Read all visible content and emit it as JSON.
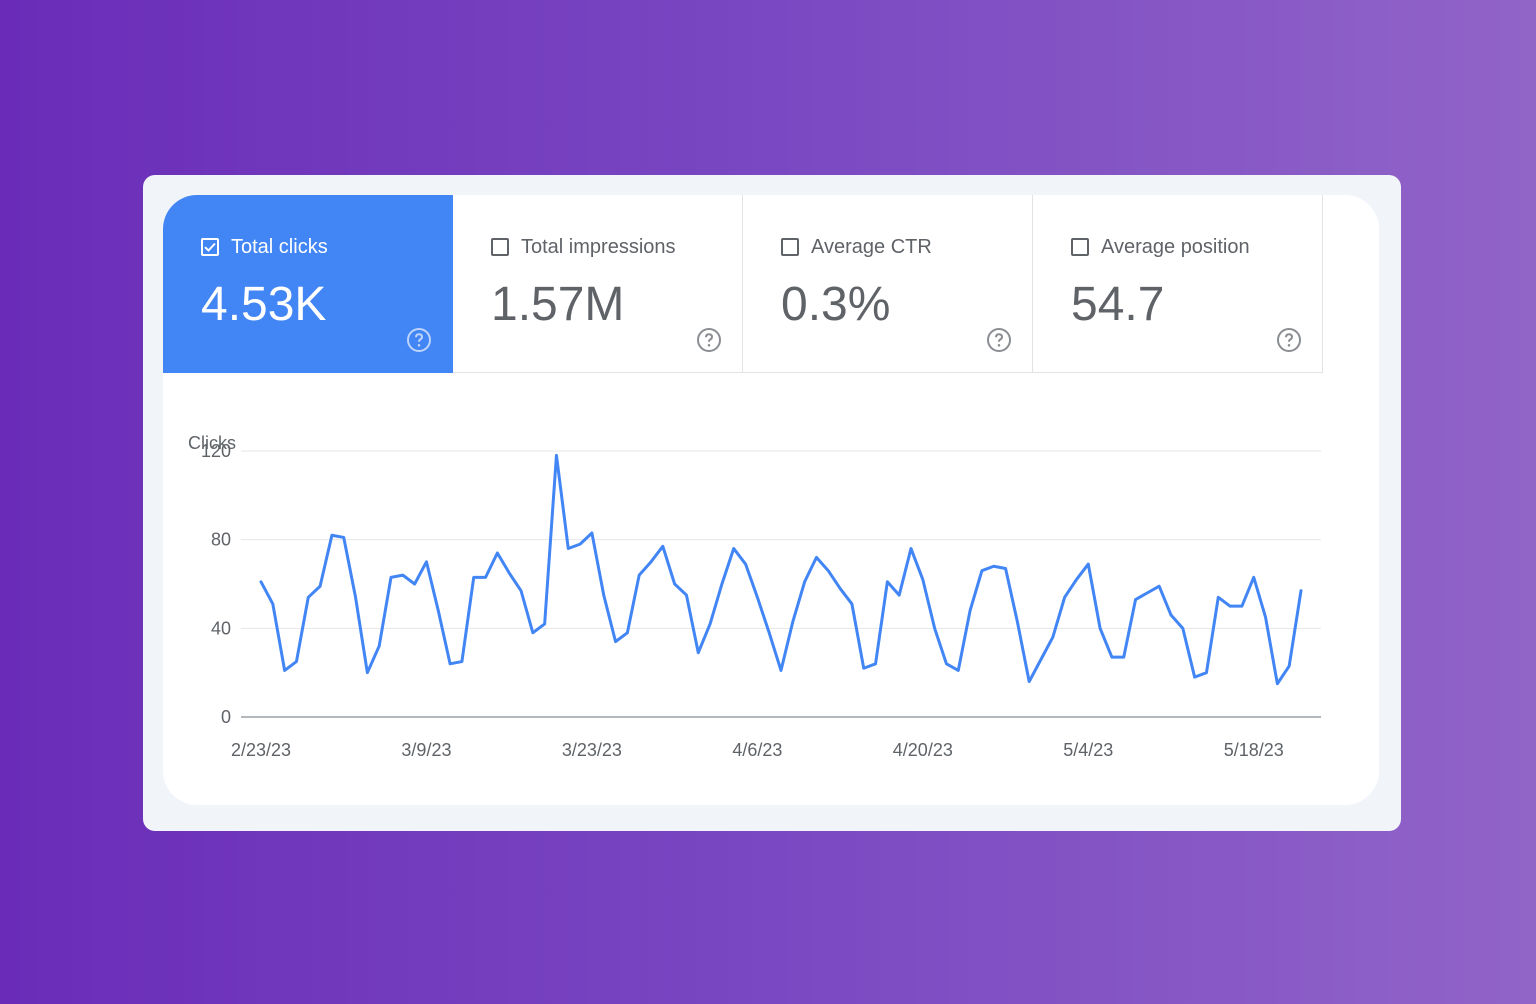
{
  "colors": {
    "accent": "#4285f4",
    "line": "#4285f4",
    "text": "#5f6368"
  },
  "metrics": [
    {
      "label": "Total clicks",
      "value": "4.53K",
      "checked": true,
      "icon": "help-icon"
    },
    {
      "label": "Total impressions",
      "value": "1.57M",
      "checked": false,
      "icon": "help-icon"
    },
    {
      "label": "Average CTR",
      "value": "0.3%",
      "checked": false,
      "icon": "help-icon"
    },
    {
      "label": "Average position",
      "value": "54.7",
      "checked": false,
      "icon": "help-icon"
    }
  ],
  "chart_data": {
    "type": "line",
    "ylabel": "Clicks",
    "ylim": [
      0,
      120
    ],
    "yticks": [
      "0",
      "40",
      "80",
      "120"
    ],
    "grid": true,
    "xticks": [
      {
        "label": "2/23/23",
        "index": 0
      },
      {
        "label": "3/9/23",
        "index": 14
      },
      {
        "label": "3/23/23",
        "index": 28
      },
      {
        "label": "4/6/23",
        "index": 42
      },
      {
        "label": "4/20/23",
        "index": 56
      },
      {
        "label": "5/4/23",
        "index": 70
      },
      {
        "label": "5/18/23",
        "index": 84
      }
    ],
    "series": [
      {
        "values": [
          61,
          51,
          21,
          25,
          54,
          59,
          82,
          81,
          54,
          20,
          32,
          63,
          64,
          60,
          70,
          48,
          24,
          25,
          63,
          63,
          74,
          65,
          57,
          38,
          42,
          118,
          76,
          78,
          83,
          55,
          34,
          38,
          64,
          70,
          77,
          60,
          55,
          29,
          42,
          60,
          76,
          69,
          54,
          38,
          21,
          43,
          61,
          72,
          66,
          58,
          51,
          22,
          24,
          61,
          55,
          76,
          62,
          40,
          24,
          21,
          48,
          66,
          68,
          67,
          43,
          16,
          26,
          36,
          54,
          62,
          69,
          40,
          27,
          27,
          53,
          56,
          59,
          46,
          40,
          18,
          20,
          54,
          50,
          50,
          63,
          45,
          15,
          23,
          57
        ]
      }
    ]
  }
}
